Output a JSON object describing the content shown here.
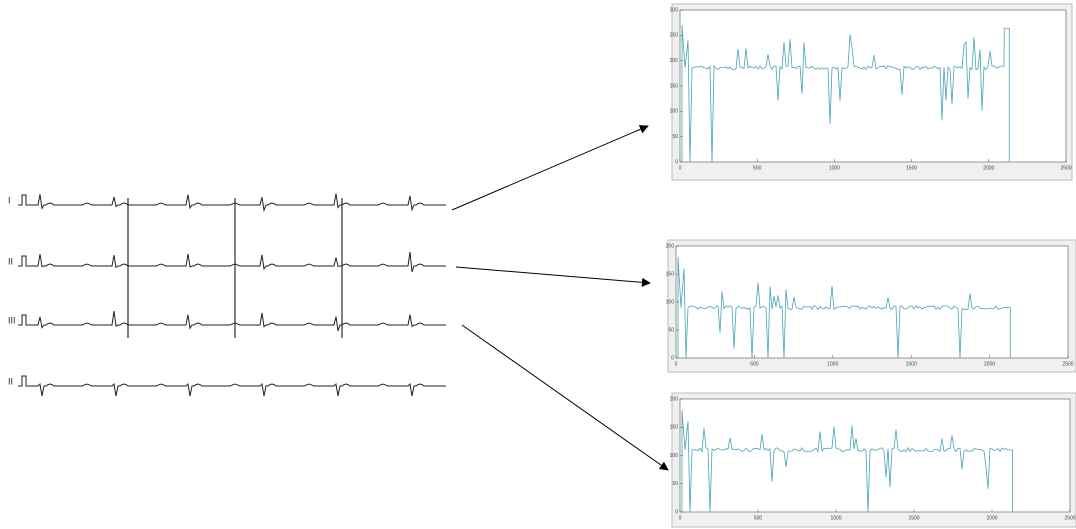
{
  "leads": [
    "I",
    "II",
    "III",
    "II"
  ],
  "plots": [
    {
      "yticks": [
        0,
        50,
        100,
        150,
        200,
        250,
        300
      ],
      "xticks": [
        0,
        500,
        1000,
        1500,
        2000,
        2500
      ]
    },
    {
      "yticks": [
        0,
        50,
        100,
        150,
        200
      ],
      "xticks": [
        0,
        500,
        1000,
        1500,
        2000,
        2500
      ]
    },
    {
      "yticks": [
        0,
        50,
        100,
        150,
        200
      ],
      "xticks": [
        0,
        500,
        1000,
        1500,
        2000,
        2500
      ]
    }
  ]
}
